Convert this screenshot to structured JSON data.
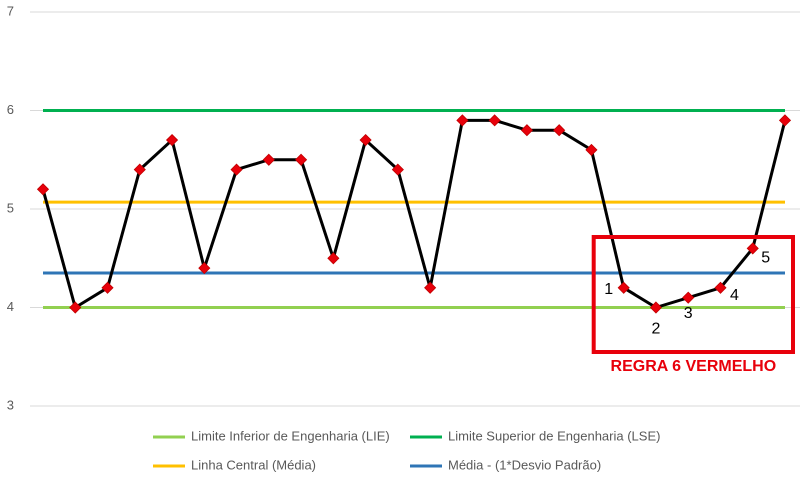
{
  "chart_data": {
    "type": "line",
    "categories": [
      null,
      null,
      null,
      null,
      null,
      null,
      null,
      null,
      null,
      null,
      null,
      null,
      null,
      null,
      null,
      null,
      null,
      null,
      null,
      null,
      null,
      null,
      null,
      null
    ],
    "values": [
      5.2,
      4.0,
      4.2,
      5.4,
      5.7,
      4.4,
      5.4,
      5.5,
      5.5,
      4.5,
      5.7,
      5.4,
      4.2,
      5.9,
      5.9,
      5.8,
      5.8,
      5.6,
      4.2,
      4.0,
      4.1,
      4.2,
      4.6,
      5.9
    ],
    "color": "#000000",
    "marker_color": "#e8000b",
    "reference_lines": [
      {
        "name": "Limite Inferior de Engenharia (LIE)",
        "color": "#92d050",
        "value": 4
      },
      {
        "name": "Limite Superior de Engenharia (LSE)",
        "color": "#00b050",
        "value": 6
      },
      {
        "name": "Linha Central (Média)",
        "color": "#ffc000",
        "value": 5.07
      },
      {
        "name": "Média - (1*Desvio Padrão)",
        "color": "#2e75b6",
        "value": 4.35
      }
    ],
    "annotations": [
      {
        "text": "1",
        "index": 18
      },
      {
        "text": "2",
        "index": 19
      },
      {
        "text": "3",
        "index": 20
      },
      {
        "text": "4",
        "index": 21
      },
      {
        "text": "5",
        "index": 22
      }
    ],
    "highlight": {
      "text": "REGRA 6 VERMELHO",
      "color": "#e8000b"
    },
    "ylim": [
      3,
      7
    ],
    "yticks": [
      3,
      4,
      5,
      6,
      7
    ],
    "grid": true
  }
}
